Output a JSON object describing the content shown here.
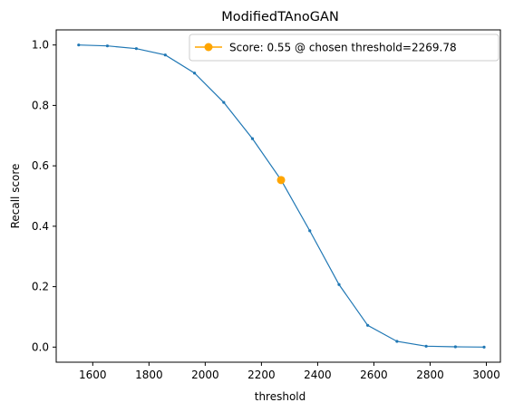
{
  "chart_data": {
    "type": "line",
    "title": "ModifiedTAnoGAN",
    "xlabel": "threshold",
    "ylabel": "Recall score",
    "xlim": [
      1470,
      3050
    ],
    "ylim": [
      -0.05,
      1.05
    ],
    "xticks": [
      1600,
      1800,
      2000,
      2200,
      2400,
      2600,
      2800,
      3000
    ],
    "yticks": [
      0.0,
      0.2,
      0.4,
      0.6,
      0.8,
      1.0
    ],
    "xtick_labels": [
      "1600",
      "1800",
      "2000",
      "2200",
      "2400",
      "2600",
      "2800",
      "3000"
    ],
    "ytick_labels": [
      "0.0",
      "0.2",
      "0.4",
      "0.6",
      "0.8",
      "1.0"
    ],
    "grid": false,
    "legend_position": "top-right",
    "series": [
      {
        "color": "#1f77b4",
        "x": [
          1550,
          1652,
          1755,
          1858,
          1962,
          2066,
          2168,
          2270,
          2372,
          2476,
          2578,
          2682,
          2786,
          2890,
          2992
        ],
        "y": [
          1.0,
          0.997,
          0.988,
          0.967,
          0.907,
          0.81,
          0.69,
          0.553,
          0.385,
          0.207,
          0.072,
          0.019,
          0.003,
          0.001,
          0.0
        ]
      },
      {
        "name": "Score: 0.55 @ chosen threshold=2269.78",
        "color": "#ffa500",
        "x": [
          2269.78
        ],
        "y": [
          0.553
        ]
      }
    ]
  }
}
